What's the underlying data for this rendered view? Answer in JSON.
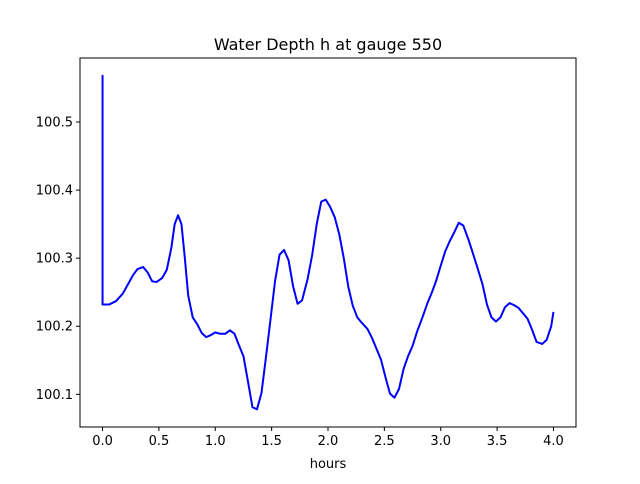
{
  "chart_data": {
    "type": "line",
    "title": "Water Depth h at gauge 550",
    "xlabel": "hours",
    "ylabel": "",
    "xlim": [
      -0.2,
      4.2
    ],
    "ylim": [
      100.052,
      100.594
    ],
    "xticks": [
      0.0,
      0.5,
      1.0,
      1.5,
      2.0,
      2.5,
      3.0,
      3.5,
      4.0
    ],
    "xtick_labels": [
      "0.0",
      "0.5",
      "1.0",
      "1.5",
      "2.0",
      "2.5",
      "3.0",
      "3.5",
      "4.0"
    ],
    "yticks": [
      100.1,
      100.2,
      100.3,
      100.4,
      100.5
    ],
    "ytick_labels": [
      "100.1",
      "100.2",
      "100.3",
      "100.4",
      "100.5"
    ],
    "grid": false,
    "legend": "none",
    "series": [
      {
        "color": "#0000ff",
        "x": [
          0.0,
          0.0,
          0.0,
          0.06,
          0.12,
          0.18,
          0.22,
          0.27,
          0.31,
          0.36,
          0.4,
          0.44,
          0.48,
          0.53,
          0.57,
          0.61,
          0.64,
          0.67,
          0.7,
          0.73,
          0.76,
          0.8,
          0.84,
          0.88,
          0.92,
          0.96,
          1.0,
          1.04,
          1.09,
          1.13,
          1.17,
          1.21,
          1.25,
          1.29,
          1.33,
          1.37,
          1.41,
          1.45,
          1.49,
          1.53,
          1.57,
          1.61,
          1.65,
          1.69,
          1.73,
          1.77,
          1.82,
          1.86,
          1.9,
          1.94,
          1.98,
          2.02,
          2.06,
          2.1,
          2.14,
          2.18,
          2.22,
          2.26,
          2.3,
          2.35,
          2.39,
          2.43,
          2.47,
          2.51,
          2.55,
          2.59,
          2.63,
          2.67,
          2.71,
          2.75,
          2.79,
          2.84,
          2.88,
          2.92,
          2.96,
          3.0,
          3.04,
          3.08,
          3.12,
          3.16,
          3.2,
          3.24,
          3.28,
          3.32,
          3.37,
          3.41,
          3.45,
          3.49,
          3.53,
          3.57,
          3.61,
          3.65,
          3.69,
          3.73,
          3.77,
          3.81,
          3.85,
          3.9,
          3.94,
          3.98,
          4.0
        ],
        "y": [
          100.232,
          100.568,
          100.232,
          100.232,
          100.237,
          100.248,
          100.26,
          100.275,
          100.284,
          100.287,
          100.279,
          100.266,
          100.265,
          100.271,
          100.283,
          100.315,
          100.35,
          100.363,
          100.35,
          100.3,
          100.245,
          100.213,
          100.203,
          100.19,
          100.184,
          100.187,
          100.191,
          100.189,
          100.189,
          100.194,
          100.189,
          100.172,
          100.156,
          100.119,
          100.081,
          100.078,
          100.102,
          100.155,
          100.21,
          100.266,
          100.305,
          100.312,
          100.297,
          100.259,
          100.233,
          100.238,
          100.27,
          100.305,
          100.35,
          100.383,
          100.386,
          100.375,
          100.36,
          100.335,
          100.3,
          100.258,
          100.23,
          100.213,
          100.205,
          100.196,
          100.183,
          100.167,
          100.151,
          100.125,
          100.101,
          100.095,
          100.108,
          100.137,
          100.156,
          100.171,
          100.192,
          100.214,
          100.233,
          100.249,
          100.267,
          100.289,
          100.31,
          100.325,
          100.338,
          100.352,
          100.348,
          100.33,
          100.31,
          100.289,
          100.262,
          100.232,
          100.213,
          100.207,
          100.213,
          100.228,
          100.234,
          100.231,
          100.227,
          100.219,
          100.211,
          100.195,
          100.177,
          100.174,
          100.18,
          100.2,
          100.221
        ]
      }
    ]
  }
}
